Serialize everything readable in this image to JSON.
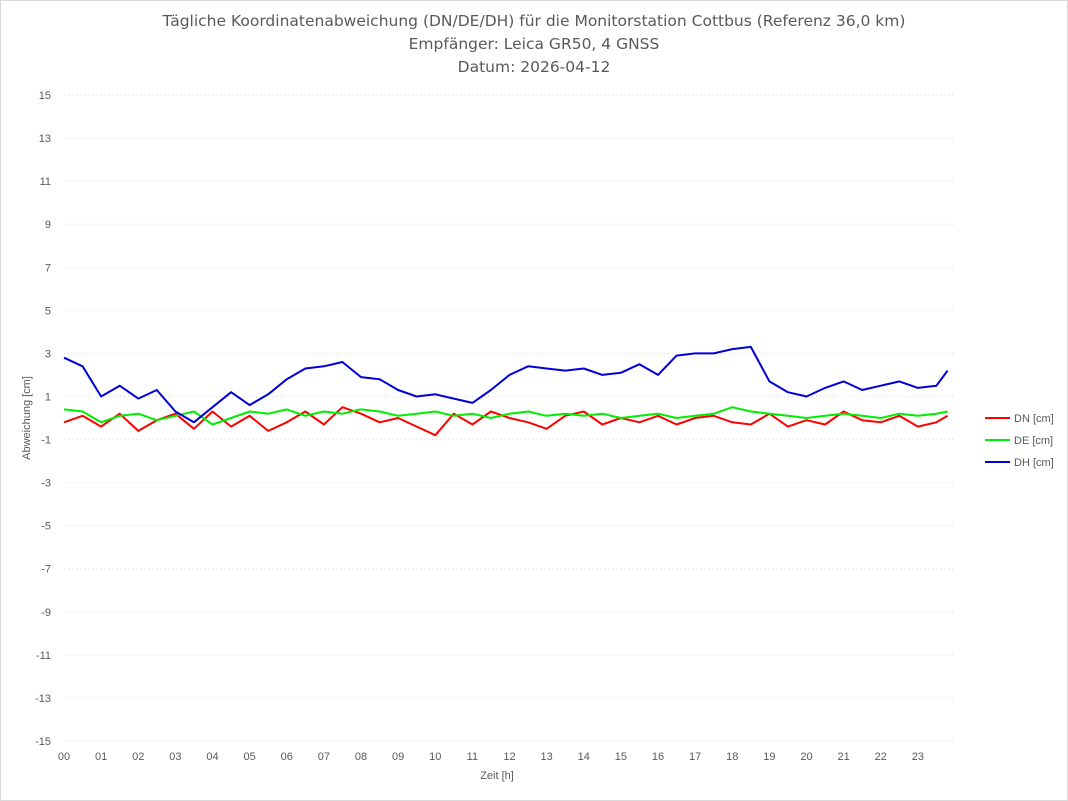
{
  "chart_data": {
    "type": "line",
    "title_lines": [
      "Tägliche Koordinatenabweichung (DN/DE/DH) für die Monitorstation Cottbus (Referenz 36,0 km)",
      "Empfänger: Leica GR50, 4 GNSS",
      "Datum: 2026-04-12"
    ],
    "xlabel": "Zeit [h]",
    "ylabel": "Abweichung [cm]",
    "xlim": [
      0,
      24
    ],
    "ylim": [
      -15,
      15
    ],
    "x_tick_labels": [
      "00",
      "01",
      "02",
      "03",
      "04",
      "05",
      "06",
      "07",
      "08",
      "09",
      "10",
      "11",
      "12",
      "13",
      "14",
      "15",
      "16",
      "17",
      "18",
      "19",
      "20",
      "21",
      "22",
      "23"
    ],
    "y_ticks": [
      15,
      13,
      11,
      9,
      7,
      5,
      3,
      1,
      -1,
      -3,
      -5,
      -7,
      -9,
      -11,
      -13,
      -15
    ],
    "grid": "horizontal dotted",
    "legend_position": "right",
    "x": [
      0.0,
      0.5,
      1.0,
      1.5,
      2.0,
      2.5,
      3.0,
      3.5,
      4.0,
      4.5,
      5.0,
      5.5,
      6.0,
      6.5,
      7.0,
      7.5,
      8.0,
      8.5,
      9.0,
      9.5,
      10.0,
      10.5,
      11.0,
      11.5,
      12.0,
      12.5,
      13.0,
      13.5,
      14.0,
      14.5,
      15.0,
      15.5,
      16.0,
      16.5,
      17.0,
      17.5,
      18.0,
      18.5,
      19.0,
      19.5,
      20.0,
      20.5,
      21.0,
      21.5,
      22.0,
      22.5,
      23.0,
      23.5,
      23.8
    ],
    "series": [
      {
        "name": "DN [cm]",
        "color": "#ff0000",
        "values": [
          -0.2,
          0.1,
          -0.4,
          0.2,
          -0.6,
          -0.1,
          0.2,
          -0.5,
          0.3,
          -0.4,
          0.1,
          -0.6,
          -0.2,
          0.3,
          -0.3,
          0.5,
          0.2,
          -0.2,
          0.0,
          -0.4,
          -0.8,
          0.2,
          -0.3,
          0.3,
          0.0,
          -0.2,
          -0.5,
          0.1,
          0.3,
          -0.3,
          0.0,
          -0.2,
          0.1,
          -0.3,
          0.0,
          0.1,
          -0.2,
          -0.3,
          0.2,
          -0.4,
          -0.1,
          -0.3,
          0.3,
          -0.1,
          -0.2,
          0.1,
          -0.4,
          -0.2,
          0.1
        ]
      },
      {
        "name": "DE [cm]",
        "color": "#00ee00",
        "values": [
          0.4,
          0.3,
          -0.2,
          0.1,
          0.2,
          -0.1,
          0.1,
          0.3,
          -0.3,
          0.0,
          0.3,
          0.2,
          0.4,
          0.1,
          0.3,
          0.2,
          0.4,
          0.3,
          0.1,
          0.2,
          0.3,
          0.1,
          0.2,
          0.0,
          0.2,
          0.3,
          0.1,
          0.2,
          0.1,
          0.2,
          0.0,
          0.1,
          0.2,
          0.0,
          0.1,
          0.2,
          0.5,
          0.3,
          0.2,
          0.1,
          0.0,
          0.1,
          0.2,
          0.1,
          0.0,
          0.2,
          0.1,
          0.2,
          0.3
        ]
      },
      {
        "name": "DH [cm]",
        "color": "#0000d9",
        "values": [
          2.8,
          2.4,
          1.0,
          1.5,
          0.9,
          1.3,
          0.3,
          -0.2,
          0.5,
          1.2,
          0.6,
          1.1,
          1.8,
          2.3,
          2.4,
          2.6,
          1.9,
          1.8,
          1.3,
          1.0,
          1.1,
          0.9,
          0.7,
          1.3,
          2.0,
          2.4,
          2.3,
          2.2,
          2.3,
          2.0,
          2.1,
          2.5,
          2.0,
          2.9,
          3.0,
          3.0,
          3.2,
          3.3,
          1.7,
          1.2,
          1.0,
          1.4,
          1.7,
          1.3,
          1.5,
          1.7,
          1.4,
          1.5,
          2.2
        ]
      }
    ]
  }
}
